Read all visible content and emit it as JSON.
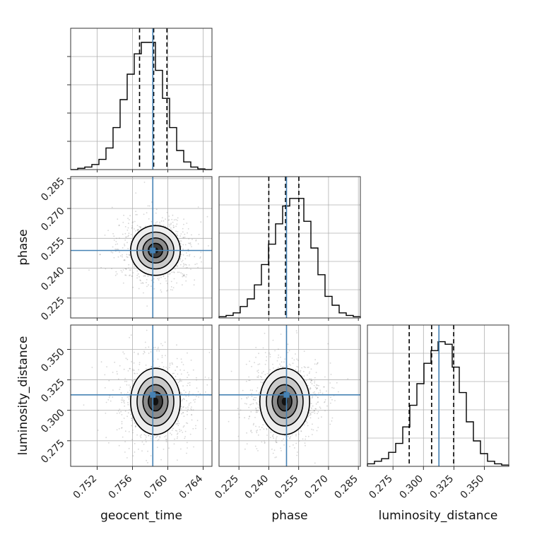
{
  "chart_data": {
    "type": "corner",
    "parameters": [
      "geocent_time",
      "phase",
      "luminosity_distance"
    ],
    "truths": {
      "geocent_time": 0.7583,
      "phase": 0.2489,
      "luminosity_distance": 0.3127
    },
    "quantiles": {
      "geocent_time": [
        0.7568,
        0.7584,
        0.7599
      ],
      "phase": [
        0.24,
        0.2484,
        0.2551
      ],
      "luminosity_distance": [
        0.2883,
        0.3067,
        0.3248
      ]
    },
    "ranges": {
      "geocent_time": [
        0.749,
        0.765
      ],
      "phase": [
        0.215,
        0.286
      ],
      "luminosity_distance": [
        0.254,
        0.37
      ]
    },
    "ticks": {
      "geocent_time": [
        "0.752",
        "0.756",
        "0.760",
        "0.764"
      ],
      "phase": [
        "0.225",
        "0.240",
        "0.255",
        "0.270",
        "0.285"
      ],
      "luminosity_distance": [
        "0.275",
        "0.300",
        "0.325",
        "0.350"
      ]
    },
    "hist": {
      "geocent_time": [
        0,
        0.01,
        0.02,
        0.04,
        0.08,
        0.17,
        0.33,
        0.55,
        0.75,
        0.91,
        1.0,
        1.0,
        0.78,
        0.56,
        0.33,
        0.15,
        0.06,
        0.02,
        0.005,
        0
      ],
      "phase": [
        0.01,
        0.02,
        0.04,
        0.09,
        0.15,
        0.26,
        0.42,
        0.58,
        0.74,
        0.88,
        0.94,
        0.94,
        0.76,
        0.55,
        0.34,
        0.17,
        0.1,
        0.04,
        0.02,
        0.01
      ],
      "luminosity_distance": [
        0.02,
        0.04,
        0.06,
        0.11,
        0.18,
        0.31,
        0.48,
        0.65,
        0.81,
        0.91,
        0.98,
        0.96,
        0.78,
        0.58,
        0.35,
        0.2,
        0.1,
        0.04,
        0.02,
        0.01
      ]
    },
    "pairs": [
      {
        "x": "geocent_time",
        "y": "phase",
        "center": [
          0.7586,
          0.2489
        ]
      },
      {
        "x": "geocent_time",
        "y": "luminosity_distance",
        "center": [
          0.7586,
          0.3073
        ]
      },
      {
        "x": "phase",
        "y": "luminosity_distance",
        "center": [
          0.248,
          0.3073
        ]
      }
    ],
    "xlabels": [
      "geocent_time",
      "phase",
      "luminosity_distance"
    ],
    "ylabels": [
      "",
      "phase",
      "luminosity_distance"
    ],
    "grid": true,
    "colors": {
      "truth": "#4682b4",
      "hist": "#000000",
      "quantile": "#000000",
      "grid": "#b0b0b0"
    }
  }
}
